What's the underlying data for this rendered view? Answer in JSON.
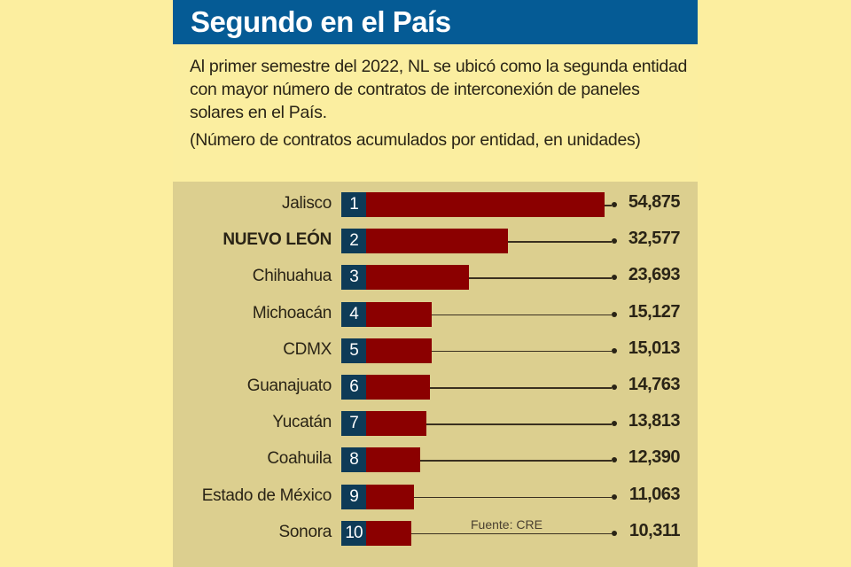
{
  "header": {
    "title": "Segundo en el País"
  },
  "description": "Al primer semestre del 2022, NL se ubicó como la segunda entidad con mayor número de contratos de interconexión de paneles solares en el País.",
  "units_note": "(Número de contratos acumulados por entidad, en unidades)",
  "colors": {
    "header": "#055b95",
    "bar": "#8b0000",
    "rank_box": "#0e3b57",
    "background": "#fbeea0",
    "chart_bg": "#dccf8f"
  },
  "chart_data": {
    "type": "bar",
    "orientation": "horizontal",
    "title": "Segundo en el País",
    "xlabel": "",
    "ylabel": "",
    "xlim": [
      0,
      54875
    ],
    "categories": [
      "Jalisco",
      "NUEVO LEÓN",
      "Chihuahua",
      "Michoacán",
      "CDMX",
      "Guanajuato",
      "Yucatán",
      "Coahuila",
      "Estado de México",
      "Sonora"
    ],
    "ranks": [
      "1",
      "2",
      "3",
      "4",
      "5",
      "6",
      "7",
      "8",
      "9",
      "10"
    ],
    "values": [
      54875,
      32577,
      23693,
      15127,
      15013,
      14763,
      13813,
      12390,
      11063,
      10311
    ],
    "value_labels": [
      "54,875",
      "32,577",
      "23,693",
      "15,127",
      "15,013",
      "14,763",
      "13,813",
      "12,390",
      "11,063",
      "10,311"
    ],
    "highlight": "NUEVO LEÓN",
    "source": "Fuente: CRE"
  }
}
